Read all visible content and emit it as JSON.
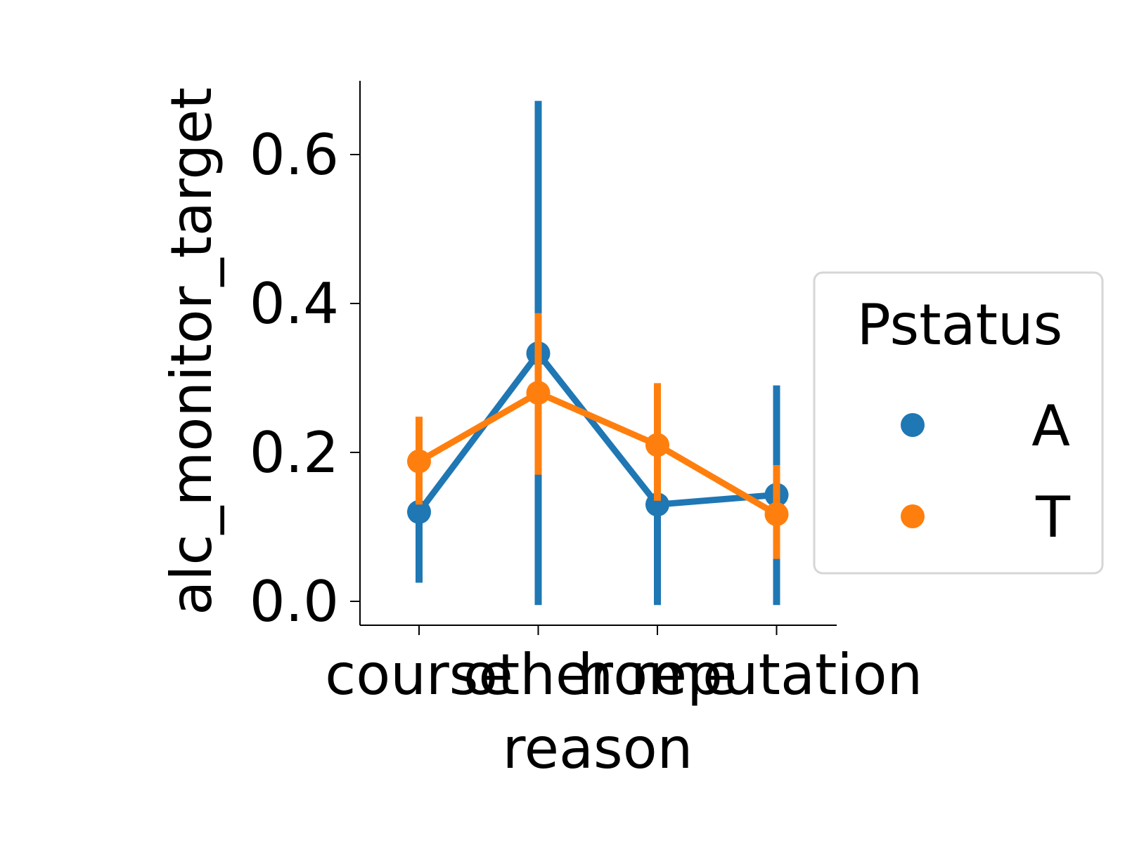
{
  "chart_data": {
    "type": "line",
    "xlabel": "reason",
    "ylabel": "alc_monitor_target",
    "categories": [
      "course",
      "other",
      "home",
      "reputation"
    ],
    "yticks": [
      "0.0",
      "0.2",
      "0.4",
      "0.6"
    ],
    "ylim": [
      -0.033,
      0.7
    ],
    "grid": false,
    "legend": {
      "title": "Pstatus",
      "placement": "center-right outside"
    },
    "series": [
      {
        "name": "A",
        "color": "#1f77b4",
        "values": [
          0.12,
          0.333,
          0.13,
          0.143
        ],
        "ci_low": [
          0.025,
          -0.005,
          -0.005,
          -0.005
        ],
        "ci_high": [
          0.13,
          0.672,
          0.13,
          0.29
        ]
      },
      {
        "name": "T",
        "color": "#ff7f0e",
        "values": [
          0.188,
          0.28,
          0.21,
          0.117
        ],
        "ci_low": [
          0.13,
          0.17,
          0.135,
          0.057
        ],
        "ci_high": [
          0.248,
          0.387,
          0.293,
          0.183
        ]
      }
    ]
  }
}
